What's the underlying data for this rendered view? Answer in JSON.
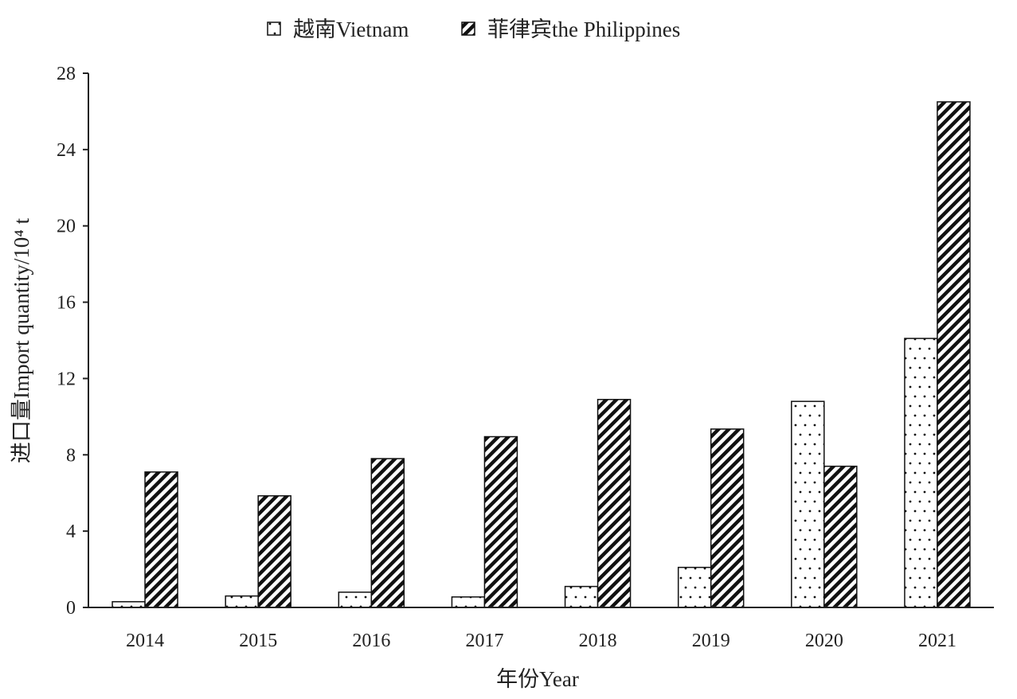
{
  "chart_data": {
    "type": "bar",
    "categories": [
      "2014",
      "2015",
      "2016",
      "2017",
      "2018",
      "2019",
      "2020",
      "2021"
    ],
    "series": [
      {
        "name": "越南Vietnam",
        "pattern": "dots",
        "values": [
          0.3,
          0.6,
          0.8,
          0.55,
          1.1,
          2.1,
          10.8,
          14.1
        ]
      },
      {
        "name": "菲律宾the Philippines",
        "pattern": "hatch",
        "values": [
          7.1,
          5.85,
          7.8,
          8.95,
          10.9,
          9.35,
          7.4,
          26.5
        ]
      }
    ],
    "xlabel": "年份Year",
    "ylabel": "进口量Import quantity/10⁴ t",
    "ylim": [
      0,
      28
    ],
    "yticks": [
      "0",
      "4",
      "8",
      "12",
      "16",
      "20",
      "24",
      "28"
    ],
    "grid": false,
    "legend": "top-center",
    "colors": {
      "stroke": "#111111",
      "fill": "#ffffff",
      "text": "#222222"
    }
  }
}
